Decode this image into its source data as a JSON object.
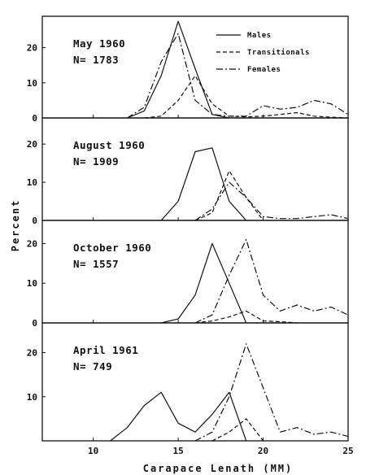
{
  "chart_data": {
    "type": "line",
    "xlabel": "Carapace Lenath (MM)",
    "ylabel": "Percent",
    "xlim": [
      7,
      25
    ],
    "x_ticks": [
      10,
      15,
      20,
      25
    ],
    "colors": {
      "ink": "#111111",
      "background": "#ffffff"
    },
    "legend": {
      "placement": "top-right of first panel",
      "entries": [
        {
          "label": "Males",
          "style": "solid"
        },
        {
          "label": "Transitionals",
          "style": "dashed"
        },
        {
          "label": "Females",
          "style": "dash-dot"
        }
      ]
    },
    "panels": [
      {
        "title": "May 1960",
        "n_label": "N= 1783",
        "ylim": [
          0,
          28
        ],
        "y_ticks": [
          0,
          10,
          20
        ],
        "series": [
          {
            "name": "Males",
            "style": "solid",
            "x": [
              12,
              13,
              14,
              15,
              16,
              17,
              18
            ],
            "y": [
              0,
              2,
              12,
              27.5,
              14,
              1,
              0
            ]
          },
          {
            "name": "Transitionals",
            "style": "dashed",
            "x": [
              13,
              14,
              15,
              16,
              17,
              18,
              19,
              20,
              21,
              22,
              23,
              24,
              25
            ],
            "y": [
              0,
              0.5,
              5,
              12,
              4,
              0.5,
              0.3,
              0.5,
              1,
              1.5,
              0.5,
              0.2,
              0
            ]
          },
          {
            "name": "Females",
            "style": "dash-dot",
            "x": [
              12,
              13,
              14,
              15,
              16,
              17,
              18,
              19,
              20,
              21,
              22,
              23,
              24,
              25
            ],
            "y": [
              0,
              3,
              16,
              24,
              5,
              1,
              0.5,
              0.5,
              3.5,
              2.5,
              3,
              5,
              4,
              1
            ]
          }
        ]
      },
      {
        "title": "August 1960",
        "n_label": "N= 1909",
        "ylim": [
          0,
          26
        ],
        "y_ticks": [
          0,
          10,
          20
        ],
        "series": [
          {
            "name": "Males",
            "style": "solid",
            "x": [
              14,
              15,
              16,
              17,
              18,
              19
            ],
            "y": [
              0,
              5,
              18,
              19,
              5,
              0
            ]
          },
          {
            "name": "Transitionals",
            "style": "dashed",
            "x": [
              16,
              17,
              18,
              19,
              20
            ],
            "y": [
              0,
              2,
              13,
              6,
              0
            ]
          },
          {
            "name": "Females",
            "style": "dash-dot",
            "x": [
              16,
              17,
              18,
              19,
              20,
              21,
              22,
              23,
              24,
              25
            ],
            "y": [
              0,
              3,
              10,
              6,
              1,
              0.5,
              0.5,
              1,
              1.5,
              0.5
            ]
          }
        ]
      },
      {
        "title": "October 1960",
        "n_label": "N= 1557",
        "ylim": [
          0,
          25
        ],
        "y_ticks": [
          0,
          10,
          20
        ],
        "series": [
          {
            "name": "Males",
            "style": "solid",
            "x": [
              14,
              15,
              16,
              17,
              18,
              19
            ],
            "y": [
              0,
              1,
              7,
              20,
              10,
              0
            ]
          },
          {
            "name": "Transitionals",
            "style": "dashed",
            "x": [
              16,
              17,
              18,
              19,
              20,
              21,
              22
            ],
            "y": [
              0,
              0.5,
              1.5,
              3,
              0.5,
              0.3,
              0
            ]
          },
          {
            "name": "Females",
            "style": "dash-dot",
            "x": [
              16,
              17,
              18,
              19,
              20,
              21,
              22,
              23,
              24,
              25
            ],
            "y": [
              0,
              2,
              12,
              21,
              7,
              3,
              4.5,
              3,
              4,
              2
            ]
          }
        ]
      },
      {
        "title": "April 1961",
        "n_label": "N= 749",
        "ylim": [
          0,
          26
        ],
        "y_ticks": [
          10,
          20
        ],
        "series": [
          {
            "name": "Males",
            "style": "solid",
            "x": [
              11,
              12,
              13,
              14,
              15,
              16,
              17,
              18,
              19
            ],
            "y": [
              0,
              3,
              8,
              11,
              4,
              2,
              6,
              11,
              0
            ]
          },
          {
            "name": "Transitionals",
            "style": "dashed",
            "x": [
              17,
              18,
              19,
              20
            ],
            "y": [
              0,
              2,
              5,
              0
            ]
          },
          {
            "name": "Females",
            "style": "dash-dot",
            "x": [
              16,
              17,
              18,
              19,
              20,
              21,
              22,
              23,
              24,
              25
            ],
            "y": [
              0,
              2,
              10,
              22,
              12,
              2,
              3,
              1.5,
              2,
              1
            ]
          }
        ]
      }
    ]
  }
}
